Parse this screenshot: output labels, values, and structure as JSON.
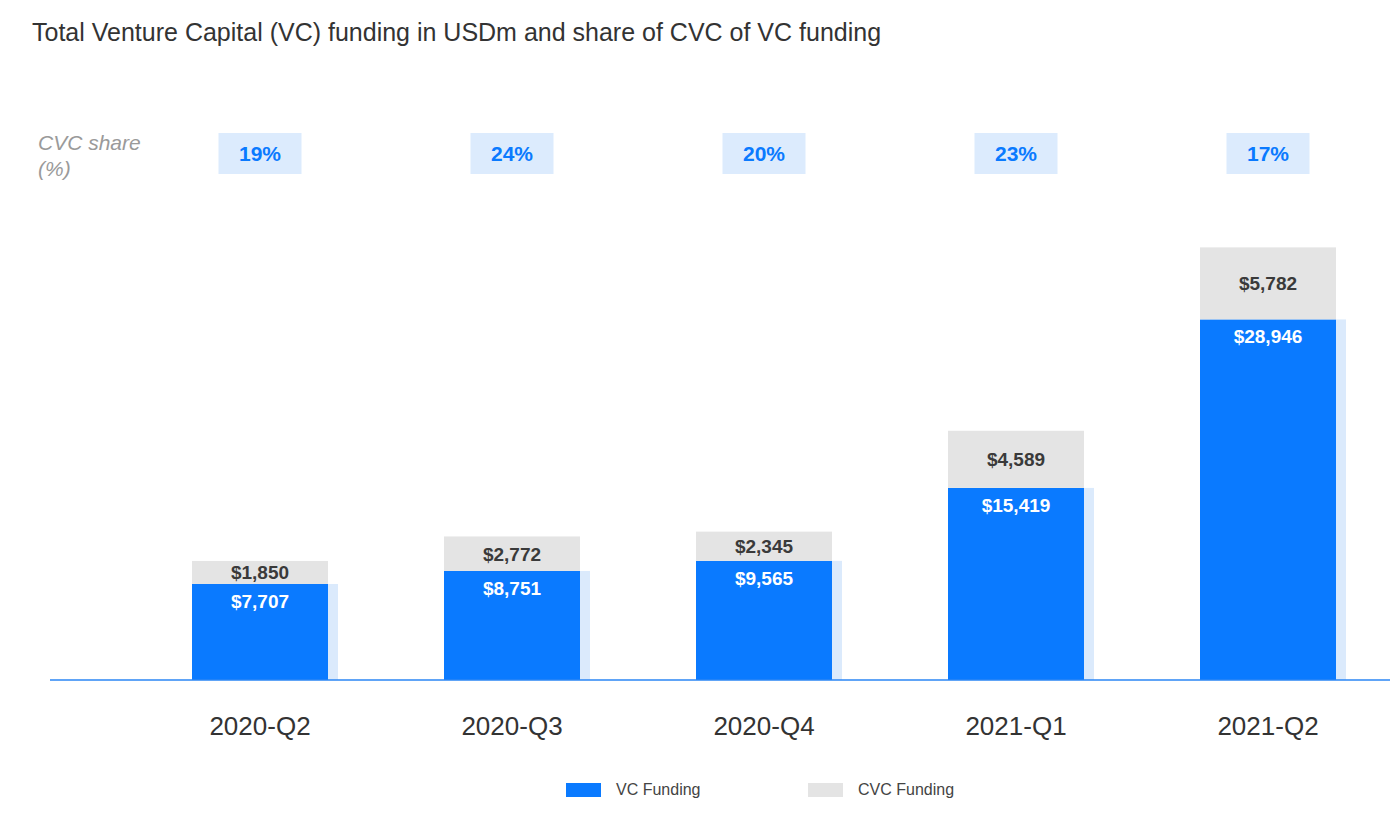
{
  "chart_data": {
    "type": "bar",
    "title": "Total Venture Capital (VC) funding in USDm and share of CVC of VC funding",
    "categories": [
      "2020-Q2",
      "2020-Q3",
      "2020-Q4",
      "2021-Q1",
      "2021-Q2"
    ],
    "series": [
      {
        "name": "VC Funding",
        "color": "#0a7aff",
        "values": [
          7707,
          8751,
          9565,
          15419,
          28946
        ],
        "value_labels": [
          "$7,707",
          "$8,751",
          "$9,565",
          "$15,419",
          "$28,946"
        ]
      },
      {
        "name": "CVC Funding",
        "color": "#e4e4e4",
        "values": [
          1850,
          2772,
          2345,
          4589,
          5782
        ],
        "value_labels": [
          "$1,850",
          "$2,772",
          "$2,345",
          "$4,589",
          "$5,782"
        ]
      }
    ],
    "cvc_share": {
      "label": "CVC share (%)",
      "values": [
        19,
        24,
        20,
        23,
        17
      ],
      "value_labels": [
        "19%",
        "24%",
        "20%",
        "23%",
        "17%"
      ]
    },
    "ylim": [
      0,
      35000
    ],
    "stacked": true,
    "data_labels": true,
    "tick_labels": "x",
    "grid": false,
    "legend": "bottom"
  }
}
